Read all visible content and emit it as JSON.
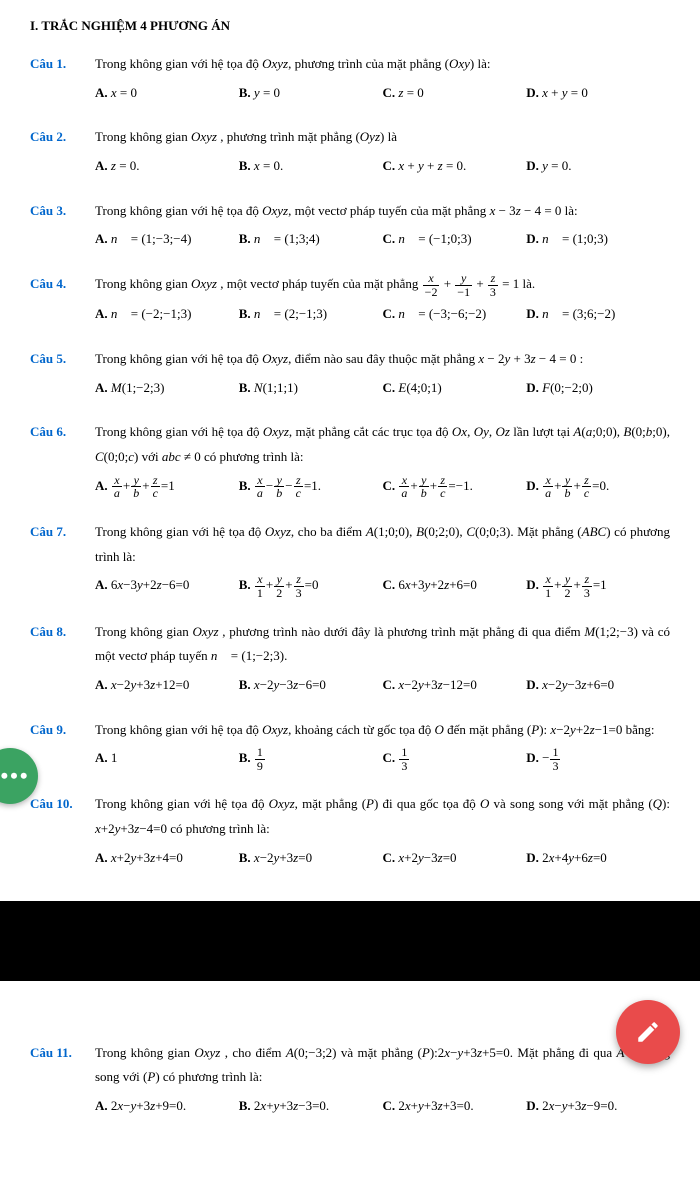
{
  "section_title": "I. TRẮC NGHIỆM 4 PHƯƠNG ÁN",
  "colors": {
    "label": "#0066cc",
    "more_btn": "#3ba362",
    "fab": "#e94b4b"
  },
  "questions": [
    {
      "label": "Câu 1.",
      "stem": "Trong không gian với hệ tọa độ <i>Oxyz</i>, phương trình của mặt phẳng (<i>Oxy</i>) là:",
      "cols": 4,
      "choices": [
        "<b>A.</b> <i>x</i> = 0",
        "<b>B.</b> <i>y</i> = 0",
        "<b>C.</b> <i>z</i> = 0",
        "<b>D.</b> <i>x</i> + <i>y</i> = 0"
      ]
    },
    {
      "label": "Câu 2.",
      "stem": "Trong không gian <i>Oxyz</i> ,  phương trình mặt phẳng (<i>Oyz</i>) là",
      "cols": 4,
      "choices": [
        "<b>A.</b> <i>z</i> = 0.",
        "<b>B.</b> <i>x</i> = 0.",
        "<b>C.</b> <i>x</i> + <i>y</i> + <i>z</i> = 0.",
        "<b>D.</b> <i>y</i> = 0."
      ]
    },
    {
      "label": "Câu 3.",
      "stem": "Trong không gian với hệ tọa độ <i>Oxyz</i>, một vectơ pháp tuyến của mặt phẳng <i>x</i> − 3<i>z</i> − 4 = 0 là:",
      "cols": 4,
      "choices": [
        "<b>A.</b> <i>n⃗</i> = (1;−3;−4)",
        "<b>B.</b> <i>n⃗</i> = (1;3;4)",
        "<b>C.</b> <i>n⃗</i> = (−1;0;3)",
        "<b>D.</b> <i>n⃗</i> = (1;0;3)"
      ]
    },
    {
      "label": "Câu 4.",
      "stem": "Trong không gian <i>Oxyz</i> , một vectơ pháp tuyến của mặt phẳng <span class='frac'><span class='n'><i>x</i></span><span class='d'>−2</span></span> + <span class='frac'><span class='n'><i>y</i></span><span class='d'>−1</span></span> + <span class='frac'><span class='n'><i>z</i></span><span class='d'>3</span></span> = 1 là.",
      "cols": 4,
      "choices": [
        "<b>A.</b> <i>n⃗</i> = (−2;−1;3)",
        "<b>B.</b> <i>n⃗</i> = (2;−1;3)",
        "<b>C.</b> <i>n⃗</i> = (−3;−6;−2)",
        "<b>D.</b> <i>n⃗</i> = (3;6;−2)"
      ]
    },
    {
      "label": "Câu 5.",
      "stem": "Trong không gian với hệ tọa độ <i>Oxyz</i>, điểm nào sau đây thuộc mặt phẳng <i>x</i> − 2<i>y</i> + 3<i>z</i> − 4 = 0 :",
      "cols": 4,
      "choices": [
        "<b>A.</b> <i>M</i>(1;−2;3)",
        "<b>B.</b> <i>N</i>(1;1;1)",
        "<b>C.</b> <i>E</i>(4;0;1)",
        "<b>D.</b> <i>F</i>(0;−2;0)"
      ]
    },
    {
      "label": "Câu 6.",
      "stem": "Trong không gian với hệ tọa độ <i>Oxyz</i>, mặt phẳng cắt các trục tọa độ <i>Ox</i>, <i>Oy</i>, <i>Oz</i> lần lượt tại <i>A</i>(<i>a</i>;0;0), <i>B</i>(0;<i>b</i>;0), <i>C</i>(0;0;<i>c</i>) với <i>abc</i> ≠ 0 có phương trình là:",
      "cols": 4,
      "choices": [
        "<b>A.</b> <span class='frac'><span class='n'><i>x</i></span><span class='d'><i>a</i></span></span>+<span class='frac'><span class='n'><i>y</i></span><span class='d'><i>b</i></span></span>+<span class='frac'><span class='n'><i>z</i></span><span class='d'><i>c</i></span></span>=1",
        "<b>B.</b> <span class='frac'><span class='n'><i>x</i></span><span class='d'><i>a</i></span></span>−<span class='frac'><span class='n'><i>y</i></span><span class='d'><i>b</i></span></span>−<span class='frac'><span class='n'><i>z</i></span><span class='d'><i>c</i></span></span>=1.",
        "<b>C.</b> <span class='frac'><span class='n'><i>x</i></span><span class='d'><i>a</i></span></span>+<span class='frac'><span class='n'><i>y</i></span><span class='d'><i>b</i></span></span>+<span class='frac'><span class='n'><i>z</i></span><span class='d'><i>c</i></span></span>=−1.",
        "<b>D.</b> <span class='frac'><span class='n'><i>x</i></span><span class='d'><i>a</i></span></span>+<span class='frac'><span class='n'><i>y</i></span><span class='d'><i>b</i></span></span>+<span class='frac'><span class='n'><i>z</i></span><span class='d'><i>c</i></span></span>=0."
      ]
    },
    {
      "label": "Câu 7.",
      "stem": "Trong không gian với hệ tọa độ <i>Oxyz</i>, cho ba điểm <i>A</i>(1;0;0), <i>B</i>(0;2;0), <i>C</i>(0;0;3). Mặt phẳng (<i>ABC</i>) có phương trình là:",
      "cols": 4,
      "choices": [
        "<b>A.</b> 6<i>x</i>−3<i>y</i>+2<i>z</i>−6=0",
        "<b>B.</b> <span class='frac'><span class='n'><i>x</i></span><span class='d'>1</span></span>+<span class='frac'><span class='n'><i>y</i></span><span class='d'>2</span></span>+<span class='frac'><span class='n'><i>z</i></span><span class='d'>3</span></span>=0",
        "<b>C.</b> 6<i>x</i>+3<i>y</i>+2<i>z</i>+6=0",
        "<b>D.</b> <span class='frac'><span class='n'><i>x</i></span><span class='d'>1</span></span>+<span class='frac'><span class='n'><i>y</i></span><span class='d'>2</span></span>+<span class='frac'><span class='n'><i>z</i></span><span class='d'>3</span></span>=1"
      ]
    },
    {
      "label": "Câu 8.",
      "stem": "Trong không gian <i>Oxyz</i> , phương trình nào dưới đây là phương trình mặt phẳng đi qua điểm <i>M</i>(1;2;−3) và có một vectơ pháp tuyến <i>n⃗</i> = (1;−2;3).",
      "cols": 4,
      "choices": [
        "<b>A.</b> <i>x</i>−2<i>y</i>+3<i>z</i>+12=0",
        "<b>B.</b> <i>x</i>−2<i>y</i>−3<i>z</i>−6=0",
        "<b>C.</b> <i>x</i>−2<i>y</i>+3<i>z</i>−12=0",
        "<b>D.</b> <i>x</i>−2<i>y</i>−3<i>z</i>+6=0"
      ]
    },
    {
      "label": "Câu 9.",
      "stem": "Trong không gian với hệ tọa độ <i>Oxyz</i>, khoảng cách từ gốc tọa độ <i>O</i> đến mặt phẳng (<i>P</i>): <i>x</i>−2<i>y</i>+2<i>z</i>−1=0 bằng:",
      "cols": 4,
      "choices": [
        "<b>A.</b> 1",
        "<b>B.</b> <span class='frac'><span class='n'>1</span><span class='d'>9</span></span>",
        "<b>C.</b> <span class='frac'><span class='n'>1</span><span class='d'>3</span></span>",
        "<b>D.</b> −<span class='frac'><span class='n'>1</span><span class='d'>3</span></span>"
      ]
    },
    {
      "label": "Câu 10.",
      "stem": "Trong không gian với hệ tọa độ <i>Oxyz</i>, mặt phẳng (<i>P</i>) đi qua gốc tọa độ <i>O</i> và song song với mặt phẳng (<i>Q</i>): <i>x</i>+2<i>y</i>+3<i>z</i>−4=0 có phương trình là:",
      "cols": 4,
      "choices": [
        "<b>A.</b> <i>x</i>+2<i>y</i>+3<i>z</i>+4=0",
        "<b>B.</b> <i>x</i>−2<i>y</i>+3<i>z</i>=0",
        "<b>C.</b> <i>x</i>+2<i>y</i>−3<i>z</i>=0",
        "<b>D.</b> 2<i>x</i>+4<i>y</i>+6<i>z</i>=0"
      ]
    },
    {
      "label": "Câu 11.",
      "stem": "Trong không gian <i>Oxyz</i> , cho điểm <i>A</i>(0;−3;2) và mặt phẳng (<i>P</i>):2<i>x</i>−<i>y</i>+3<i>z</i>+5=0. Mặt phẳng đi qua <i>A</i> và song song với (<i>P</i>) có phương trình là:",
      "cols": 4,
      "choices": [
        "<b>A.</b> 2<i>x</i>−<i>y</i>+3<i>z</i>+9=0.",
        "<b>B.</b> 2<i>x</i>+<i>y</i>+3<i>z</i>−3=0.",
        "<b>C.</b> 2<i>x</i>+<i>y</i>+3<i>z</i>+3=0.",
        "<b>D.</b> 2<i>x</i>−<i>y</i>+3<i>z</i>−9=0."
      ]
    }
  ],
  "page_break_after": 10
}
